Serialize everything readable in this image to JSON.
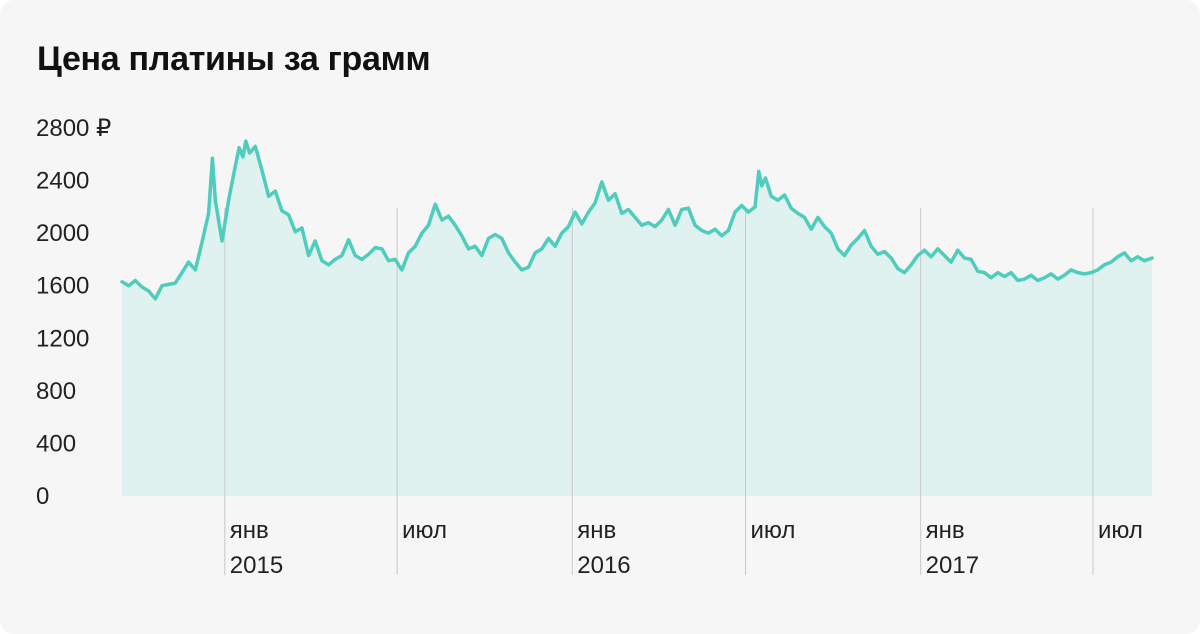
{
  "chart_data": {
    "type": "area",
    "title": "Цена платины за грамм",
    "xlabel": "",
    "ylabel": "",
    "ylim": [
      0,
      2800
    ],
    "y_ticks": [
      {
        "value": 2800,
        "label": "2800 ₽"
      },
      {
        "value": 2400,
        "label": "2400"
      },
      {
        "value": 2000,
        "label": "2000"
      },
      {
        "value": 1600,
        "label": "1600"
      },
      {
        "value": 1200,
        "label": "1200"
      },
      {
        "value": 800,
        "label": "800"
      },
      {
        "value": 400,
        "label": "400"
      },
      {
        "value": 0,
        "label": "0"
      }
    ],
    "xlim": [
      "2014-09-15",
      "2017-09-01"
    ],
    "x_ticks": [
      {
        "date": "2015-01-01",
        "month": "янв",
        "year": "2015"
      },
      {
        "date": "2015-07-01",
        "month": "июл",
        "year": ""
      },
      {
        "date": "2016-01-01",
        "month": "янв",
        "year": "2016"
      },
      {
        "date": "2016-07-01",
        "month": "июл",
        "year": ""
      },
      {
        "date": "2017-01-01",
        "month": "янв",
        "year": "2017"
      },
      {
        "date": "2017-07-01",
        "month": "июл",
        "year": ""
      }
    ],
    "grid": false,
    "colors": {
      "line": "#4ecdbd",
      "fill": "#e0f2f0",
      "guide": "#c9c9c9"
    },
    "series": [
      {
        "values": [
          [
            "2014-09-15",
            1630
          ],
          [
            "2014-09-22",
            1600
          ],
          [
            "2014-09-29",
            1640
          ],
          [
            "2014-10-06",
            1590
          ],
          [
            "2014-10-13",
            1560
          ],
          [
            "2014-10-20",
            1500
          ],
          [
            "2014-10-27",
            1600
          ],
          [
            "2014-11-03",
            1610
          ],
          [
            "2014-11-10",
            1620
          ],
          [
            "2014-11-17",
            1700
          ],
          [
            "2014-11-24",
            1780
          ],
          [
            "2014-12-01",
            1720
          ],
          [
            "2014-12-08",
            1930
          ],
          [
            "2014-12-15",
            2150
          ],
          [
            "2014-12-19",
            2570
          ],
          [
            "2014-12-22",
            2250
          ],
          [
            "2014-12-29",
            1940
          ],
          [
            "2015-01-05",
            2250
          ],
          [
            "2015-01-12",
            2510
          ],
          [
            "2015-01-16",
            2650
          ],
          [
            "2015-01-20",
            2580
          ],
          [
            "2015-01-23",
            2700
          ],
          [
            "2015-01-27",
            2610
          ],
          [
            "2015-02-02",
            2660
          ],
          [
            "2015-02-09",
            2480
          ],
          [
            "2015-02-16",
            2280
          ],
          [
            "2015-02-23",
            2320
          ],
          [
            "2015-03-02",
            2170
          ],
          [
            "2015-03-09",
            2140
          ],
          [
            "2015-03-16",
            2010
          ],
          [
            "2015-03-23",
            2040
          ],
          [
            "2015-03-30",
            1830
          ],
          [
            "2015-04-06",
            1940
          ],
          [
            "2015-04-13",
            1790
          ],
          [
            "2015-04-20",
            1760
          ],
          [
            "2015-04-27",
            1800
          ],
          [
            "2015-05-04",
            1830
          ],
          [
            "2015-05-11",
            1950
          ],
          [
            "2015-05-18",
            1830
          ],
          [
            "2015-05-25",
            1800
          ],
          [
            "2015-06-01",
            1840
          ],
          [
            "2015-06-08",
            1890
          ],
          [
            "2015-06-15",
            1880
          ],
          [
            "2015-06-22",
            1790
          ],
          [
            "2015-06-29",
            1800
          ],
          [
            "2015-07-06",
            1720
          ],
          [
            "2015-07-13",
            1850
          ],
          [
            "2015-07-20",
            1900
          ],
          [
            "2015-07-27",
            2000
          ],
          [
            "2015-08-03",
            2060
          ],
          [
            "2015-08-10",
            2220
          ],
          [
            "2015-08-17",
            2100
          ],
          [
            "2015-08-24",
            2130
          ],
          [
            "2015-08-31",
            2060
          ],
          [
            "2015-09-07",
            1980
          ],
          [
            "2015-09-14",
            1880
          ],
          [
            "2015-09-21",
            1900
          ],
          [
            "2015-09-28",
            1830
          ],
          [
            "2015-10-05",
            1960
          ],
          [
            "2015-10-12",
            1990
          ],
          [
            "2015-10-19",
            1960
          ],
          [
            "2015-10-26",
            1850
          ],
          [
            "2015-11-02",
            1780
          ],
          [
            "2015-11-09",
            1720
          ],
          [
            "2015-11-16",
            1740
          ],
          [
            "2015-11-23",
            1850
          ],
          [
            "2015-11-30",
            1880
          ],
          [
            "2015-12-07",
            1960
          ],
          [
            "2015-12-14",
            1900
          ],
          [
            "2015-12-21",
            2000
          ],
          [
            "2015-12-28",
            2050
          ],
          [
            "2016-01-04",
            2160
          ],
          [
            "2016-01-11",
            2070
          ],
          [
            "2016-01-18",
            2160
          ],
          [
            "2016-01-25",
            2230
          ],
          [
            "2016-02-01",
            2390
          ],
          [
            "2016-02-08",
            2250
          ],
          [
            "2016-02-15",
            2300
          ],
          [
            "2016-02-22",
            2150
          ],
          [
            "2016-02-29",
            2180
          ],
          [
            "2016-03-07",
            2120
          ],
          [
            "2016-03-14",
            2060
          ],
          [
            "2016-03-21",
            2080
          ],
          [
            "2016-03-28",
            2050
          ],
          [
            "2016-04-04",
            2100
          ],
          [
            "2016-04-11",
            2180
          ],
          [
            "2016-04-18",
            2060
          ],
          [
            "2016-04-25",
            2180
          ],
          [
            "2016-05-02",
            2190
          ],
          [
            "2016-05-09",
            2060
          ],
          [
            "2016-05-16",
            2020
          ],
          [
            "2016-05-23",
            2000
          ],
          [
            "2016-05-30",
            2030
          ],
          [
            "2016-06-06",
            1980
          ],
          [
            "2016-06-13",
            2020
          ],
          [
            "2016-06-20",
            2160
          ],
          [
            "2016-06-27",
            2210
          ],
          [
            "2016-07-04",
            2160
          ],
          [
            "2016-07-11",
            2200
          ],
          [
            "2016-07-15",
            2470
          ],
          [
            "2016-07-18",
            2360
          ],
          [
            "2016-07-22",
            2420
          ],
          [
            "2016-07-28",
            2280
          ],
          [
            "2016-08-04",
            2250
          ],
          [
            "2016-08-11",
            2290
          ],
          [
            "2016-08-18",
            2190
          ],
          [
            "2016-08-25",
            2150
          ],
          [
            "2016-09-01",
            2120
          ],
          [
            "2016-09-08",
            2030
          ],
          [
            "2016-09-15",
            2120
          ],
          [
            "2016-09-22",
            2050
          ],
          [
            "2016-09-29",
            2000
          ],
          [
            "2016-10-06",
            1880
          ],
          [
            "2016-10-13",
            1830
          ],
          [
            "2016-10-20",
            1910
          ],
          [
            "2016-10-27",
            1960
          ],
          [
            "2016-11-03",
            2020
          ],
          [
            "2016-11-10",
            1900
          ],
          [
            "2016-11-17",
            1840
          ],
          [
            "2016-11-24",
            1860
          ],
          [
            "2016-12-01",
            1810
          ],
          [
            "2016-12-08",
            1730
          ],
          [
            "2016-12-15",
            1700
          ],
          [
            "2016-12-22",
            1760
          ],
          [
            "2016-12-29",
            1830
          ],
          [
            "2017-01-05",
            1870
          ],
          [
            "2017-01-12",
            1820
          ],
          [
            "2017-01-19",
            1880
          ],
          [
            "2017-01-26",
            1830
          ],
          [
            "2017-02-02",
            1780
          ],
          [
            "2017-02-09",
            1870
          ],
          [
            "2017-02-16",
            1810
          ],
          [
            "2017-02-23",
            1800
          ],
          [
            "2017-03-02",
            1710
          ],
          [
            "2017-03-09",
            1700
          ],
          [
            "2017-03-16",
            1660
          ],
          [
            "2017-03-23",
            1700
          ],
          [
            "2017-03-30",
            1670
          ],
          [
            "2017-04-06",
            1700
          ],
          [
            "2017-04-13",
            1640
          ],
          [
            "2017-04-20",
            1650
          ],
          [
            "2017-04-27",
            1680
          ],
          [
            "2017-05-04",
            1640
          ],
          [
            "2017-05-11",
            1660
          ],
          [
            "2017-05-18",
            1690
          ],
          [
            "2017-05-25",
            1650
          ],
          [
            "2017-06-01",
            1680
          ],
          [
            "2017-06-08",
            1720
          ],
          [
            "2017-06-15",
            1700
          ],
          [
            "2017-06-22",
            1690
          ],
          [
            "2017-06-29",
            1700
          ],
          [
            "2017-07-06",
            1720
          ],
          [
            "2017-07-13",
            1760
          ],
          [
            "2017-07-20",
            1780
          ],
          [
            "2017-07-27",
            1820
          ],
          [
            "2017-08-03",
            1850
          ],
          [
            "2017-08-10",
            1790
          ],
          [
            "2017-08-17",
            1820
          ],
          [
            "2017-08-24",
            1790
          ],
          [
            "2017-09-01",
            1810
          ]
        ]
      }
    ]
  }
}
